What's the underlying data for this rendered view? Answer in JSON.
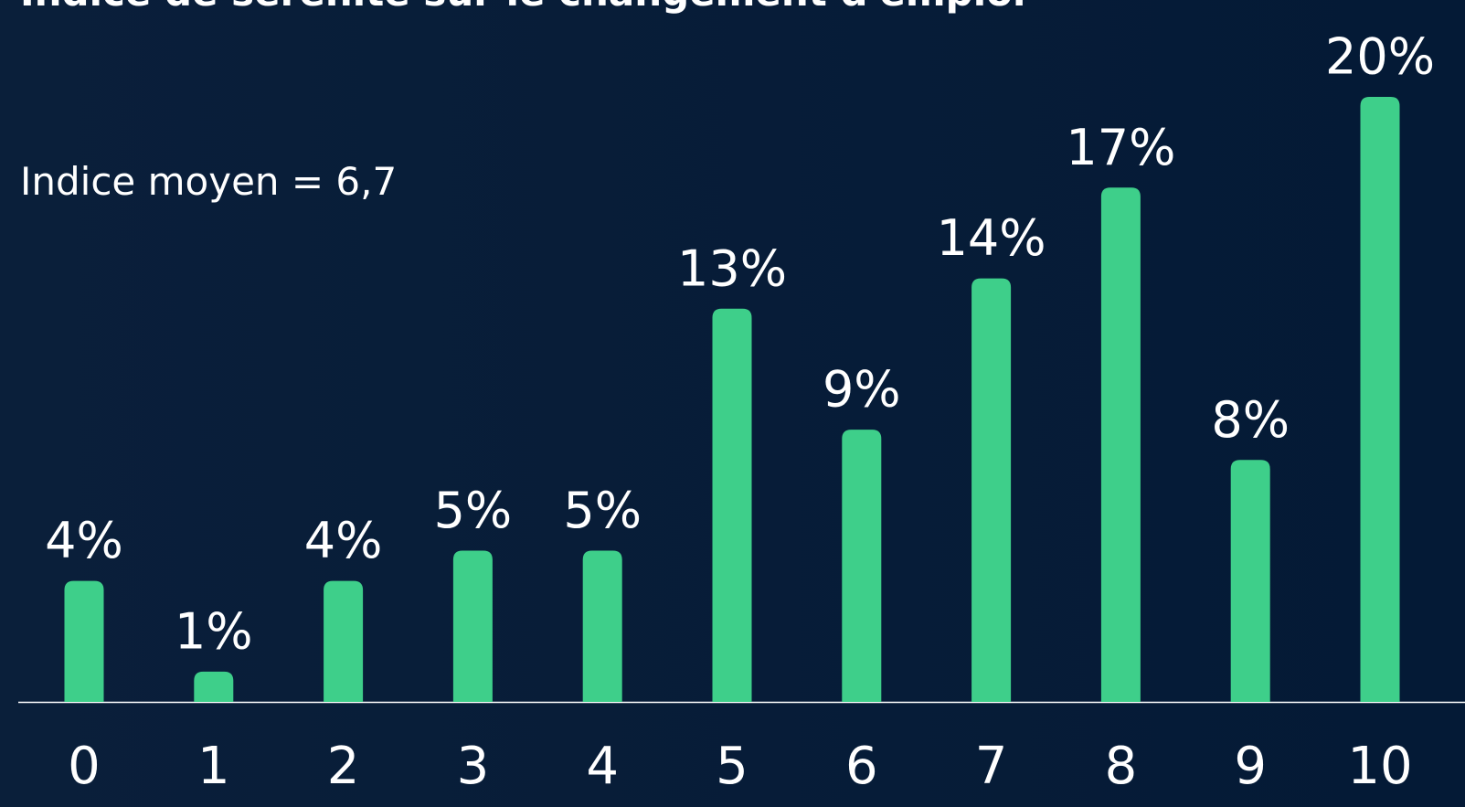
{
  "chart_data": {
    "type": "bar",
    "title": "Indice de sérénité sur le changement d'emploi",
    "annotation": "Indice moyen = 6,7",
    "categories": [
      "0",
      "1",
      "2",
      "3",
      "4",
      "5",
      "6",
      "7",
      "8",
      "9",
      "10"
    ],
    "values": [
      4,
      1,
      4,
      5,
      5,
      13,
      9,
      14,
      17,
      8,
      20
    ],
    "value_labels": [
      "4%",
      "1%",
      "4%",
      "5%",
      "5%",
      "13%",
      "9%",
      "14%",
      "17%",
      "8%",
      "20%"
    ],
    "color": "#3ecf8a"
  }
}
